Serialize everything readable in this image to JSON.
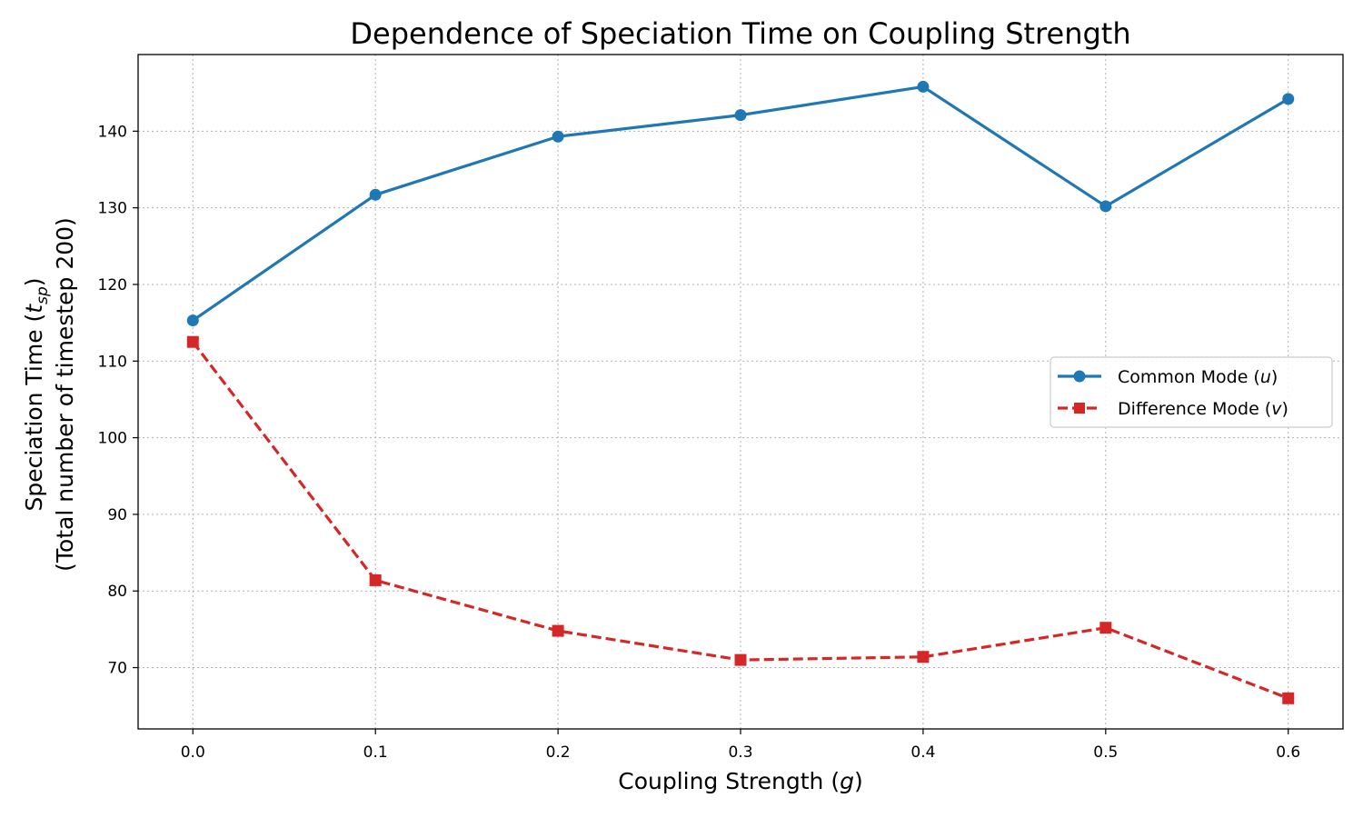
{
  "chart_data": {
    "type": "line",
    "title": "Dependence of Speciation Time on Coupling Strength",
    "xlabel": {
      "text": "Coupling Strength (",
      "var": "g",
      "end": ")"
    },
    "ylabel": {
      "line1": {
        "text": "Speciation Time (",
        "var": "t",
        "sub": "sp",
        "end": ")"
      },
      "line2": "(Total number of timestep 200)"
    },
    "x": [
      0.0,
      0.1,
      0.2,
      0.3,
      0.4,
      0.5,
      0.6
    ],
    "x_tick_labels": [
      "0.0",
      "0.1",
      "0.2",
      "0.3",
      "0.4",
      "0.5",
      "0.6"
    ],
    "y_ticks": [
      70,
      80,
      90,
      100,
      110,
      120,
      130,
      140
    ],
    "xlim": [
      -0.03,
      0.63
    ],
    "ylim": [
      62,
      150
    ],
    "grid": true,
    "legend_position": "center-right",
    "series": [
      {
        "key": "common",
        "name": "Common Mode (",
        "var": "u",
        "end": ")",
        "color": "#1f77b4",
        "marker": "circle",
        "linestyle": "solid",
        "values": [
          115.3,
          131.7,
          139.3,
          142.1,
          145.8,
          130.2,
          144.2
        ]
      },
      {
        "key": "difference",
        "name": "Difference Mode (",
        "var": "v",
        "end": ")",
        "color": "#d62728",
        "marker": "square",
        "linestyle": "dashed",
        "values": [
          112.5,
          81.4,
          74.8,
          71.0,
          71.4,
          75.2,
          66.0
        ]
      }
    ]
  }
}
